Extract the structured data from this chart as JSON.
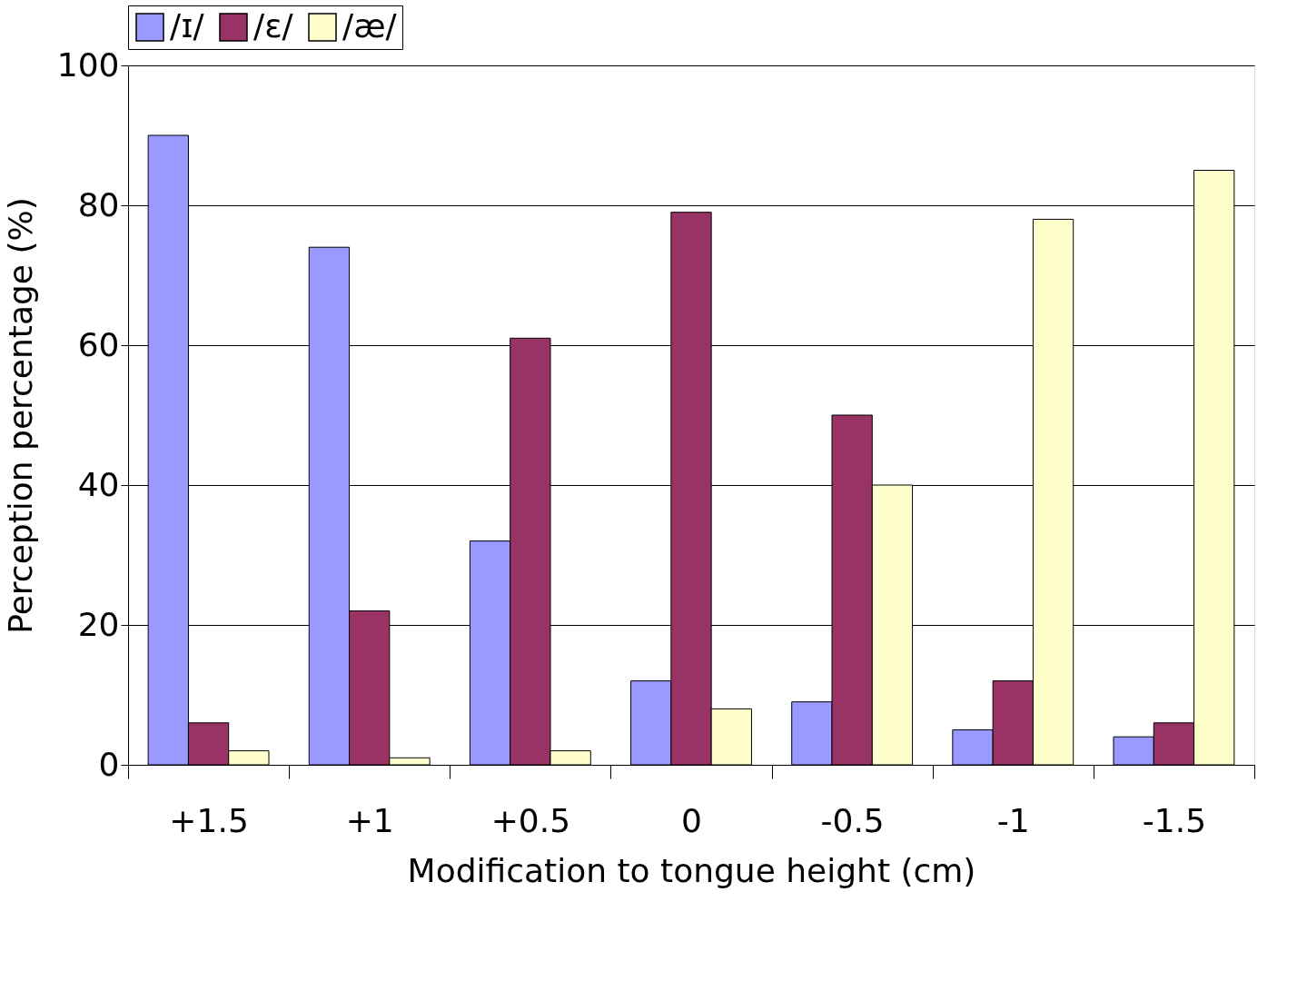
{
  "chart_data": {
    "type": "bar",
    "xlabel": "Modification to tongue height (cm)",
    "ylabel": "Perception percentage (%)",
    "categories": [
      "+1.5",
      "+1",
      "+0.5",
      "0",
      "-0.5",
      "-1",
      "-1.5"
    ],
    "series": [
      {
        "name": "/ɪ/",
        "color": "#9999ff",
        "values": [
          90,
          74,
          32,
          12,
          9,
          5,
          4
        ]
      },
      {
        "name": "/ɛ/",
        "color": "#993366",
        "values": [
          6,
          22,
          61,
          79,
          50,
          12,
          6
        ]
      },
      {
        "name": "/æ/",
        "color": "#ffffcc",
        "values": [
          2,
          1,
          2,
          8,
          40,
          78,
          85
        ]
      }
    ],
    "ylim": [
      0,
      100
    ],
    "yticks": [
      0,
      20,
      40,
      60,
      80,
      100
    ],
    "grid": "y",
    "legend": "top"
  }
}
